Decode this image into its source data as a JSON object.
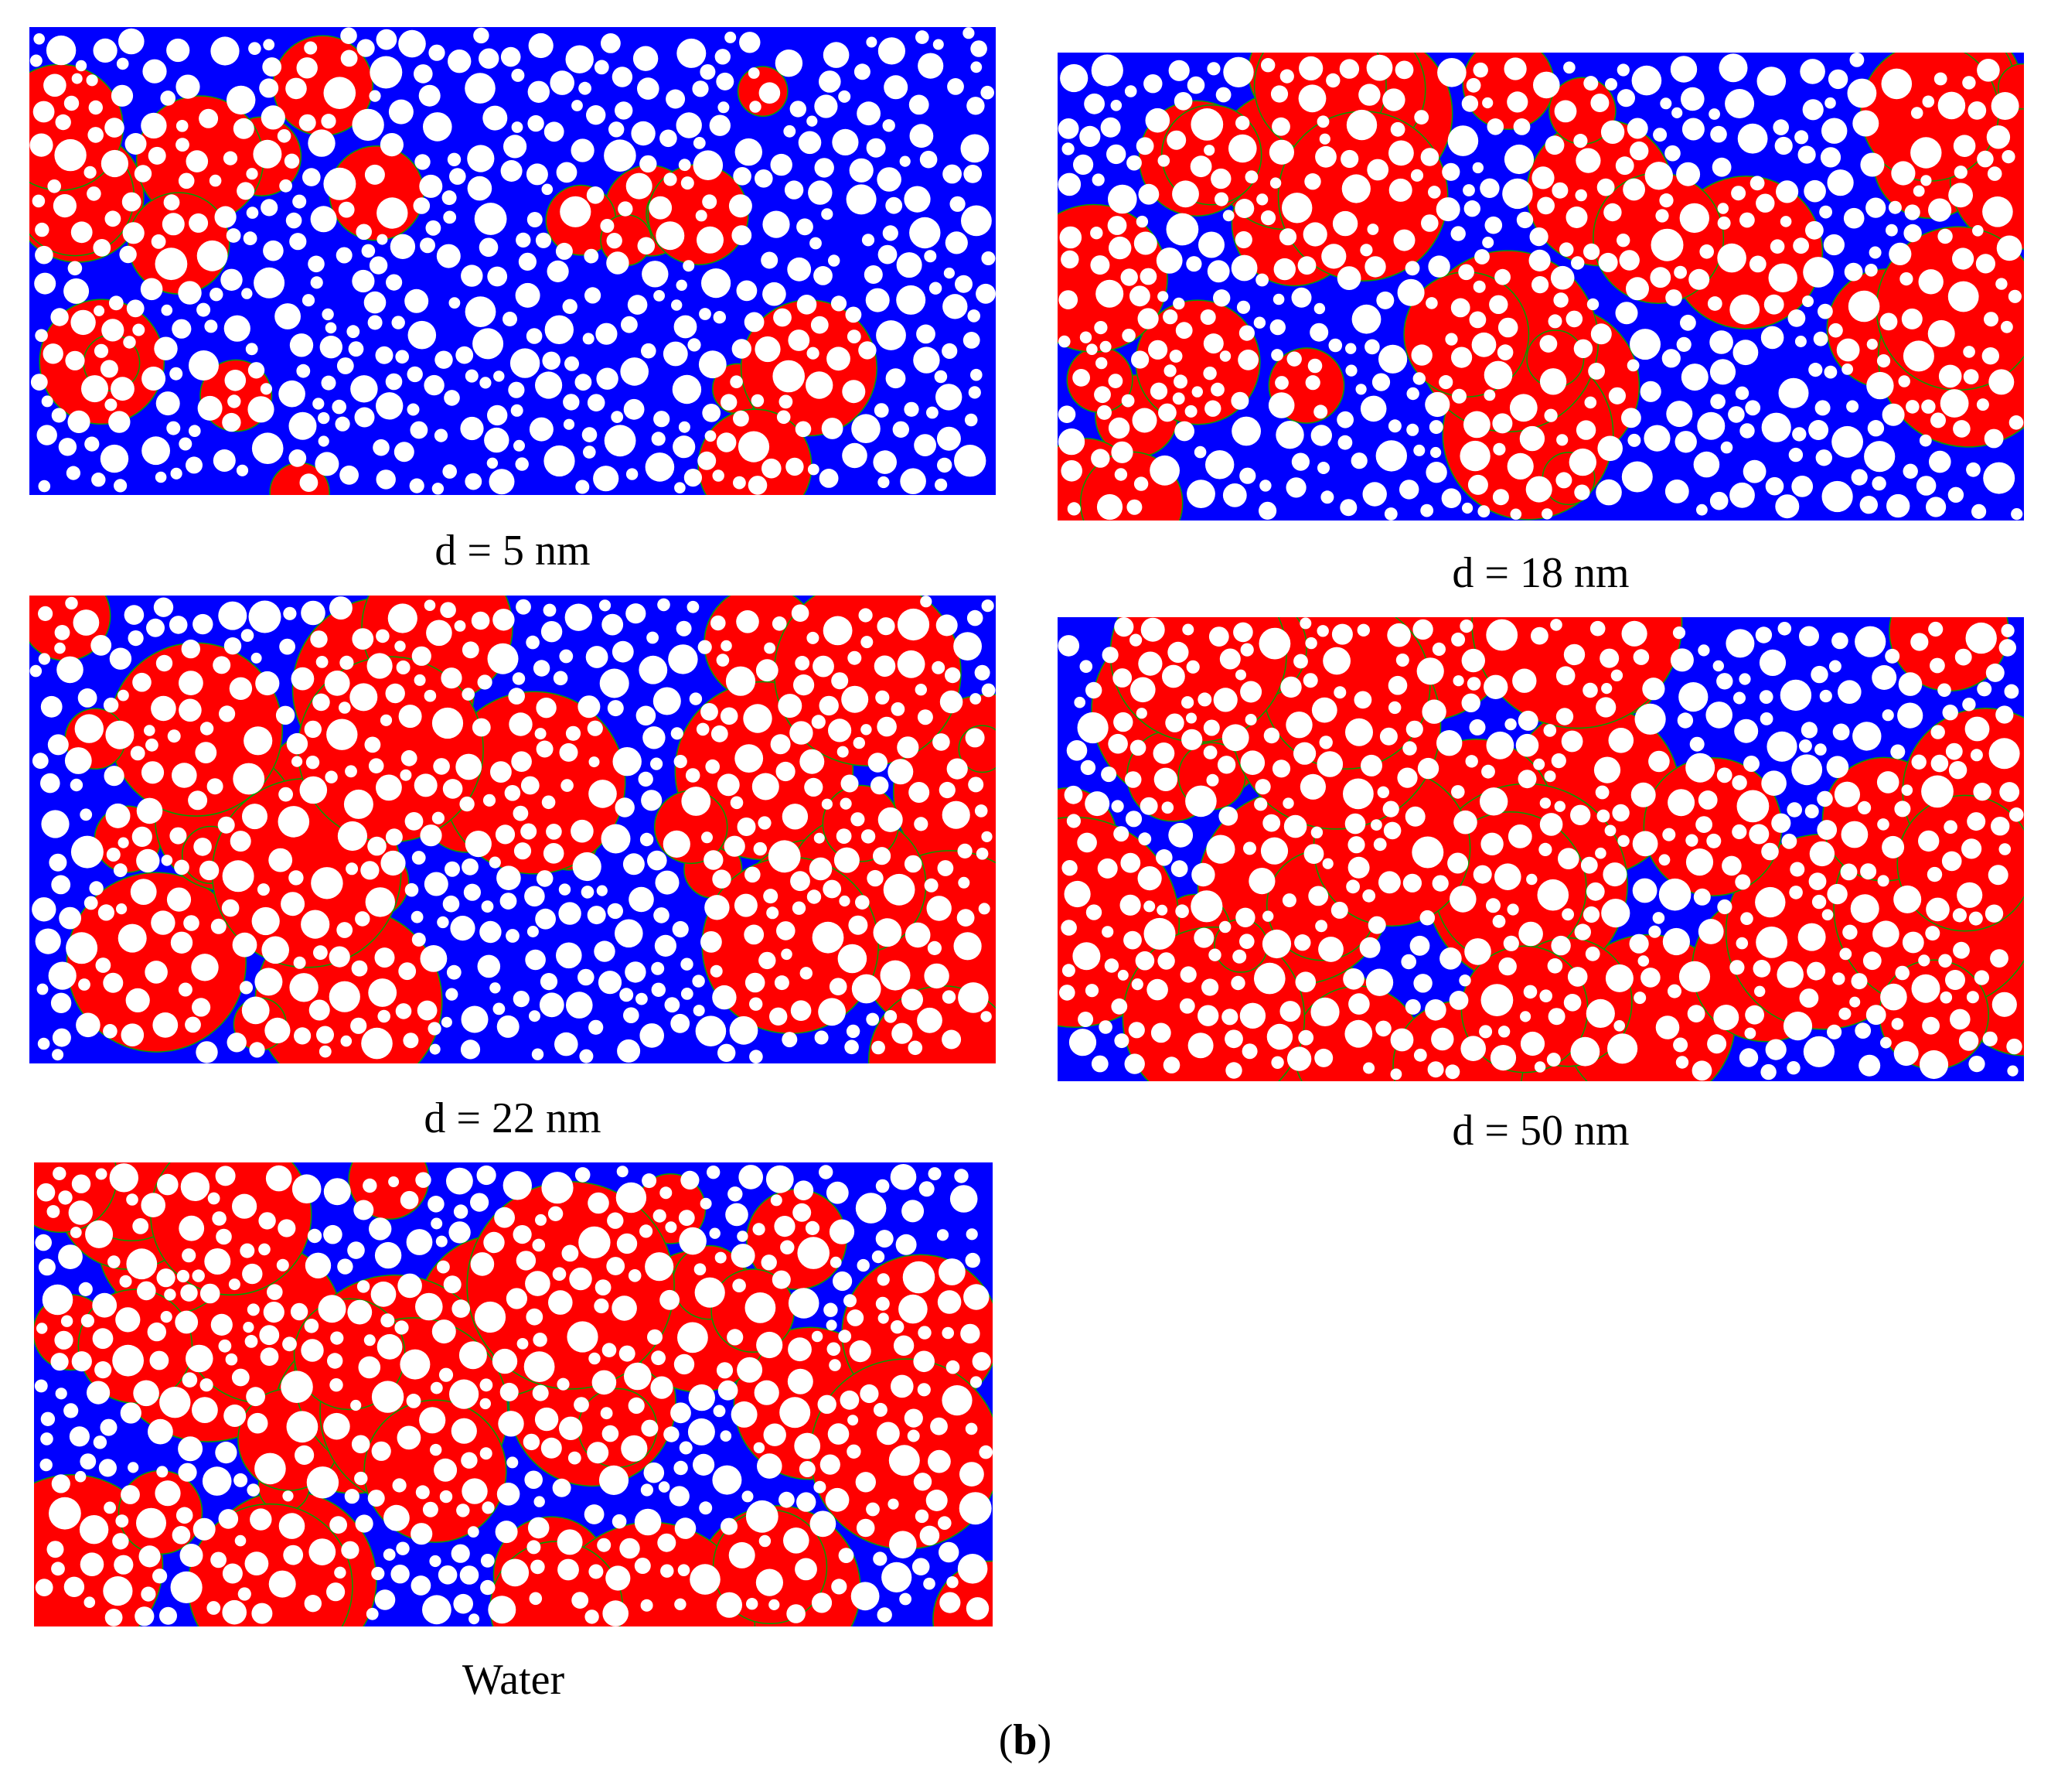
{
  "colors": {
    "phase_a": "#ff0000",
    "phase_b": "#0000ff",
    "particle": "#ffffff",
    "interface": "#00a000"
  },
  "panels": [
    {
      "caption": "d = 5 nm",
      "red_fraction": 0.18,
      "seed": 11
    },
    {
      "caption": "d = 18 nm",
      "red_fraction": 0.45,
      "seed": 23
    },
    {
      "caption": "d = 22 nm",
      "red_fraction": 0.52,
      "seed": 37
    },
    {
      "caption": "d = 50 nm",
      "red_fraction": 0.6,
      "seed": 51
    },
    {
      "caption": "Water",
      "red_fraction": 0.6,
      "seed": 73
    }
  ],
  "figure_label": {
    "open": "(",
    "letter": "b",
    "close": ")"
  }
}
